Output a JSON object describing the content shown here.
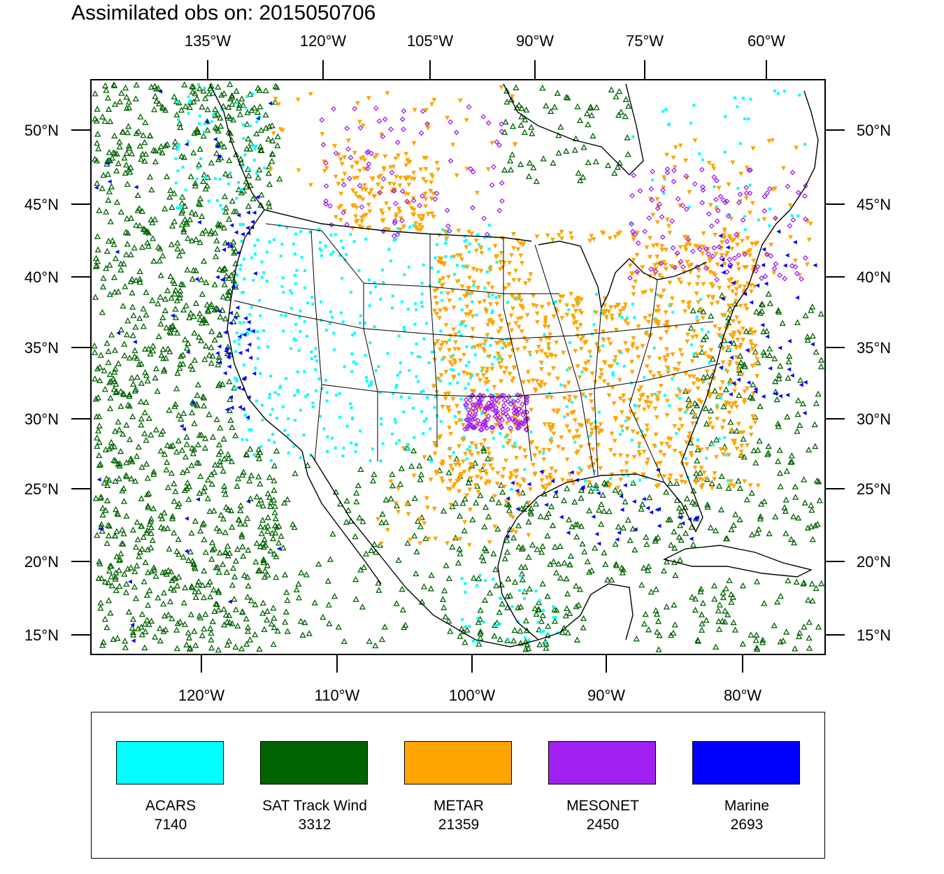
{
  "title": "Assimilated obs on: 2015050706",
  "axes": {
    "top_ticks": [
      "135°W",
      "120°W",
      "105°W",
      "90°W",
      "75°W",
      "60°W"
    ],
    "bottom_ticks": [
      "120°W",
      "110°W",
      "100°W",
      "90°W",
      "80°W"
    ],
    "lat_ticks": [
      "50°N",
      "45°N",
      "40°N",
      "35°N",
      "30°N",
      "25°N",
      "20°N",
      "15°N"
    ]
  },
  "legend": [
    {
      "name": "ACARS",
      "count": "7140",
      "color": "#00ffff"
    },
    {
      "name": "SAT Track Wind",
      "count": "3312",
      "color": "#006400"
    },
    {
      "name": "METAR",
      "count": "21359",
      "color": "#ffa500"
    },
    {
      "name": "MESONET",
      "count": "2450",
      "color": "#a020f0"
    },
    {
      "name": "Marine",
      "count": "2693",
      "color": "#0000ff"
    }
  ]
}
